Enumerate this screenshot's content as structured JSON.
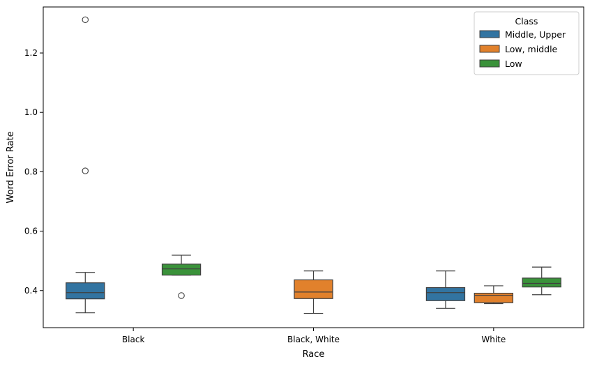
{
  "chart_data": {
    "type": "box",
    "xlabel": "Race",
    "ylabel": "Word Error Rate",
    "categories": [
      "Black",
      "Black, White",
      "White"
    ],
    "ylim": [
      0.275,
      1.355
    ],
    "yticks": [
      0.4,
      0.6,
      0.8,
      1.0,
      1.2
    ],
    "ytick_labels": [
      "0.4",
      "0.6",
      "0.8",
      "1.0",
      "1.2"
    ],
    "grid": false,
    "legend": {
      "title": "Class",
      "placement": "top-right"
    },
    "series": [
      {
        "name": "Middle, Upper",
        "color": "#3274a1",
        "boxes": [
          {
            "category": "Black",
            "whisker_low": 0.325,
            "q1": 0.372,
            "median": 0.393,
            "q3": 0.426,
            "whisker_high": 0.461,
            "outliers": [
              1.312,
              0.803
            ]
          },
          null,
          {
            "category": "White",
            "whisker_low": 0.34,
            "q1": 0.366,
            "median": 0.393,
            "q3": 0.41,
            "whisker_high": 0.466,
            "outliers": []
          }
        ]
      },
      {
        "name": "Low, middle",
        "color": "#e1812c",
        "boxes": [
          null,
          {
            "category": "Black, White",
            "whisker_low": 0.323,
            "q1": 0.373,
            "median": 0.395,
            "q3": 0.436,
            "whisker_high": 0.466,
            "outliers": []
          },
          {
            "category": "White",
            "whisker_low": 0.356,
            "q1": 0.359,
            "median": 0.384,
            "q3": 0.391,
            "whisker_high": 0.416,
            "outliers": []
          }
        ]
      },
      {
        "name": "Low",
        "color": "#3a923a",
        "boxes": [
          {
            "category": "Black",
            "whisker_low": 0.452,
            "q1": 0.452,
            "median": 0.473,
            "q3": 0.489,
            "whisker_high": 0.519,
            "outliers": [
              0.383
            ]
          },
          null,
          {
            "category": "White",
            "whisker_low": 0.386,
            "q1": 0.412,
            "median": 0.424,
            "q3": 0.442,
            "whisker_high": 0.479,
            "outliers": []
          }
        ]
      }
    ]
  }
}
